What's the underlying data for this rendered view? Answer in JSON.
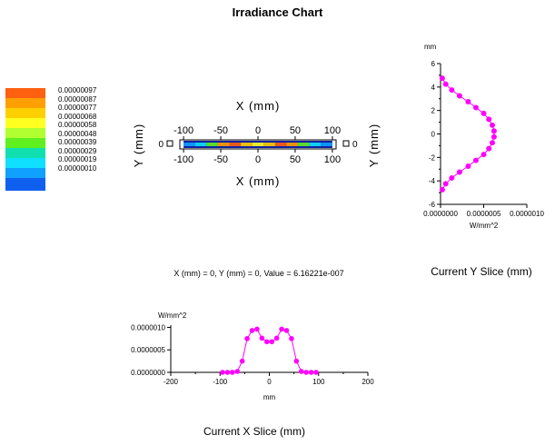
{
  "title": "Irradiance Chart",
  "readout": "X (mm) = 0, Y (mm) = 0, Value = 6.16221e-007",
  "colors": {
    "series": "#ff00ff"
  },
  "legend": {
    "labels": [
      "0.00000097",
      "0.00000087",
      "0.00000077",
      "0.00000068",
      "0.00000058",
      "0.00000048",
      "0.00000039",
      "0.00000029",
      "0.00000019",
      "0.00000010"
    ],
    "colors": [
      "#ff6010",
      "#ffa000",
      "#ffd000",
      "#ffff20",
      "#b0ff30",
      "#60f020",
      "#10e0b0",
      "#10e0ff",
      "#10a0ff",
      "#1060f0"
    ]
  },
  "heatmap": {
    "x_label": "X (mm)",
    "y_label": "Y (mm)",
    "x_ticks": [
      "-100",
      "-50",
      "0",
      "50",
      "100"
    ],
    "y_ticks": [
      "0"
    ]
  },
  "y_slice": {
    "caption": "Current Y Slice (mm)"
  },
  "x_slice": {
    "caption": "Current X Slice (mm)"
  },
  "chart_data": [
    {
      "type": "heatmap",
      "title": "Irradiance Chart",
      "xlabel": "X (mm)",
      "ylabel": "Y (mm)",
      "xlim": [
        -105,
        105
      ],
      "ylim": [
        -5,
        5
      ],
      "x_ticks": [
        -100,
        -50,
        0,
        50,
        100
      ],
      "y_ticks": [
        0
      ],
      "legend": "left",
      "color_scale": [
        1e-07,
        1.9e-07,
        2.9e-07,
        3.9e-07,
        4.8e-07,
        5.8e-07,
        6.8e-07,
        7.7e-07,
        8.7e-07,
        9.7e-07
      ]
    },
    {
      "type": "line",
      "name": "Current Y Slice (mm)",
      "ylabel": "mm",
      "xlabel": "W/mm^2",
      "ylim": [
        -6,
        6
      ],
      "xlim": [
        0,
        1e-06
      ],
      "y_ticks": [
        -6,
        -4,
        -2,
        0,
        2,
        4,
        6
      ],
      "x_ticks": [
        "0.0000000",
        "0.0000005",
        "0.0000010"
      ],
      "y": [
        -4.75,
        -4.25,
        -3.75,
        -3.25,
        -2.75,
        -2.25,
        -1.75,
        -1.25,
        -0.75,
        -0.25,
        0.25,
        0.75,
        1.25,
        1.75,
        2.25,
        2.75,
        3.25,
        3.75,
        4.25,
        4.75
      ],
      "x": [
        2e-08,
        6e-08,
        1.3e-07,
        2.2e-07,
        3.2e-07,
        4.1e-07,
        5e-07,
        5.6e-07,
        6e-07,
        6.2e-07,
        6.2e-07,
        6e-07,
        5.6e-07,
        5e-07,
        4.1e-07,
        3.2e-07,
        2.2e-07,
        1.3e-07,
        6e-08,
        2e-08
      ]
    },
    {
      "type": "line",
      "name": "Current X Slice (mm)",
      "xlabel": "mm",
      "ylabel": "W/mm^2",
      "xlim": [
        -200,
        200
      ],
      "ylim": [
        0,
        1.05e-06
      ],
      "x_ticks": [
        -200,
        -100,
        0,
        100,
        200
      ],
      "y_ticks": [
        "0.0000000",
        "0.0000005",
        "0.0000010"
      ],
      "x": [
        -95,
        -85,
        -75,
        -65,
        -55,
        -45,
        -35,
        -25,
        -15,
        -5,
        5,
        15,
        25,
        35,
        45,
        55,
        65,
        75,
        85,
        95
      ],
      "y": [
        0,
        0,
        0,
        2e-08,
        2.5e-07,
        7.5e-07,
        9.3e-07,
        9.6e-07,
        7.6e-07,
        6.8e-07,
        6.8e-07,
        7.6e-07,
        9.6e-07,
        9.3e-07,
        7.5e-07,
        2.5e-07,
        2e-08,
        0,
        0,
        0
      ]
    }
  ]
}
